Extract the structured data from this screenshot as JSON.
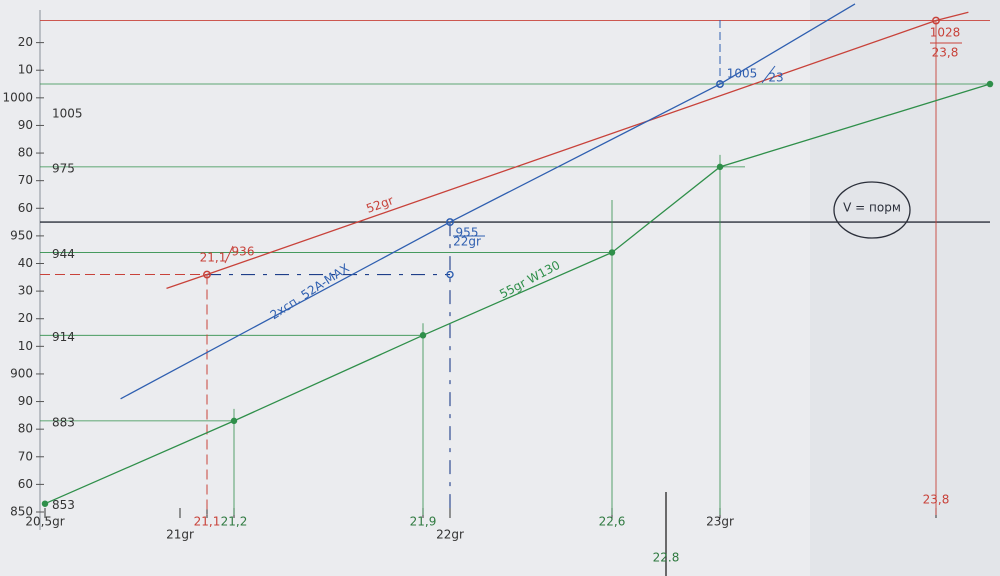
{
  "chart_data": {
    "type": "line",
    "xlim": [
      20.5,
      24
    ],
    "ylim": [
      850,
      1030
    ],
    "xticks": [
      {
        "value": 20.5,
        "label": "20,5gr"
      },
      {
        "value": 21,
        "label": "21gr"
      },
      {
        "value": 21.1,
        "label": "21,1"
      },
      {
        "value": 21.2,
        "label": "21,2"
      },
      {
        "value": 21.9,
        "label": "21,9"
      },
      {
        "value": 22,
        "label": "22gr"
      },
      {
        "value": 22.6,
        "label": "22,6"
      },
      {
        "value": 22.8,
        "label": "22.8"
      },
      {
        "value": 23,
        "label": "23gr"
      },
      {
        "value": 23.8,
        "label": "23,8"
      }
    ],
    "yticks": [
      850,
      {
        "value": 860,
        "label": "60"
      },
      {
        "value": 870,
        "label": "70"
      },
      {
        "value": 880,
        "label": "80"
      },
      {
        "value": 890,
        "label": "90"
      },
      900,
      {
        "value": 910,
        "label": "10"
      },
      {
        "value": 920,
        "label": "20"
      },
      {
        "value": 930,
        "label": "30"
      },
      {
        "value": 940,
        "label": "40"
      },
      950,
      {
        "value": 960,
        "label": "60"
      },
      {
        "value": 970,
        "label": "70"
      },
      {
        "value": 980,
        "label": "80"
      },
      {
        "value": 990,
        "label": "90"
      },
      1000,
      {
        "value": 1010,
        "label": "10"
      },
      {
        "value": 1020,
        "label": "20"
      }
    ],
    "grid": false,
    "series": [
      {
        "name": "55gr W130",
        "color": "#2f8f4a",
        "x": [
          20.5,
          21.2,
          21.9,
          22.6,
          23,
          24
        ],
        "values": [
          853,
          883,
          914,
          944,
          975,
          1005
        ]
      },
      {
        "name": "52gr",
        "color": "#c8423a",
        "x": [
          20.95,
          21.1,
          23.8,
          23.92
        ],
        "values": [
          931,
          936,
          1028,
          1031
        ]
      },
      {
        "name": "2хсп. 52A-MAX",
        "color": "#2f5fb0",
        "x": [
          20.78,
          22,
          23,
          23.5
        ],
        "values": [
          891,
          955,
          1005,
          1034
        ]
      }
    ],
    "reference_line": {
      "value": 955,
      "label": "V = порм",
      "color": "#2b2f3a"
    },
    "annotations": [
      "21,1",
      "936",
      "1028",
      "23,8",
      "955",
      "22gr",
      "1005",
      "23"
    ]
  }
}
